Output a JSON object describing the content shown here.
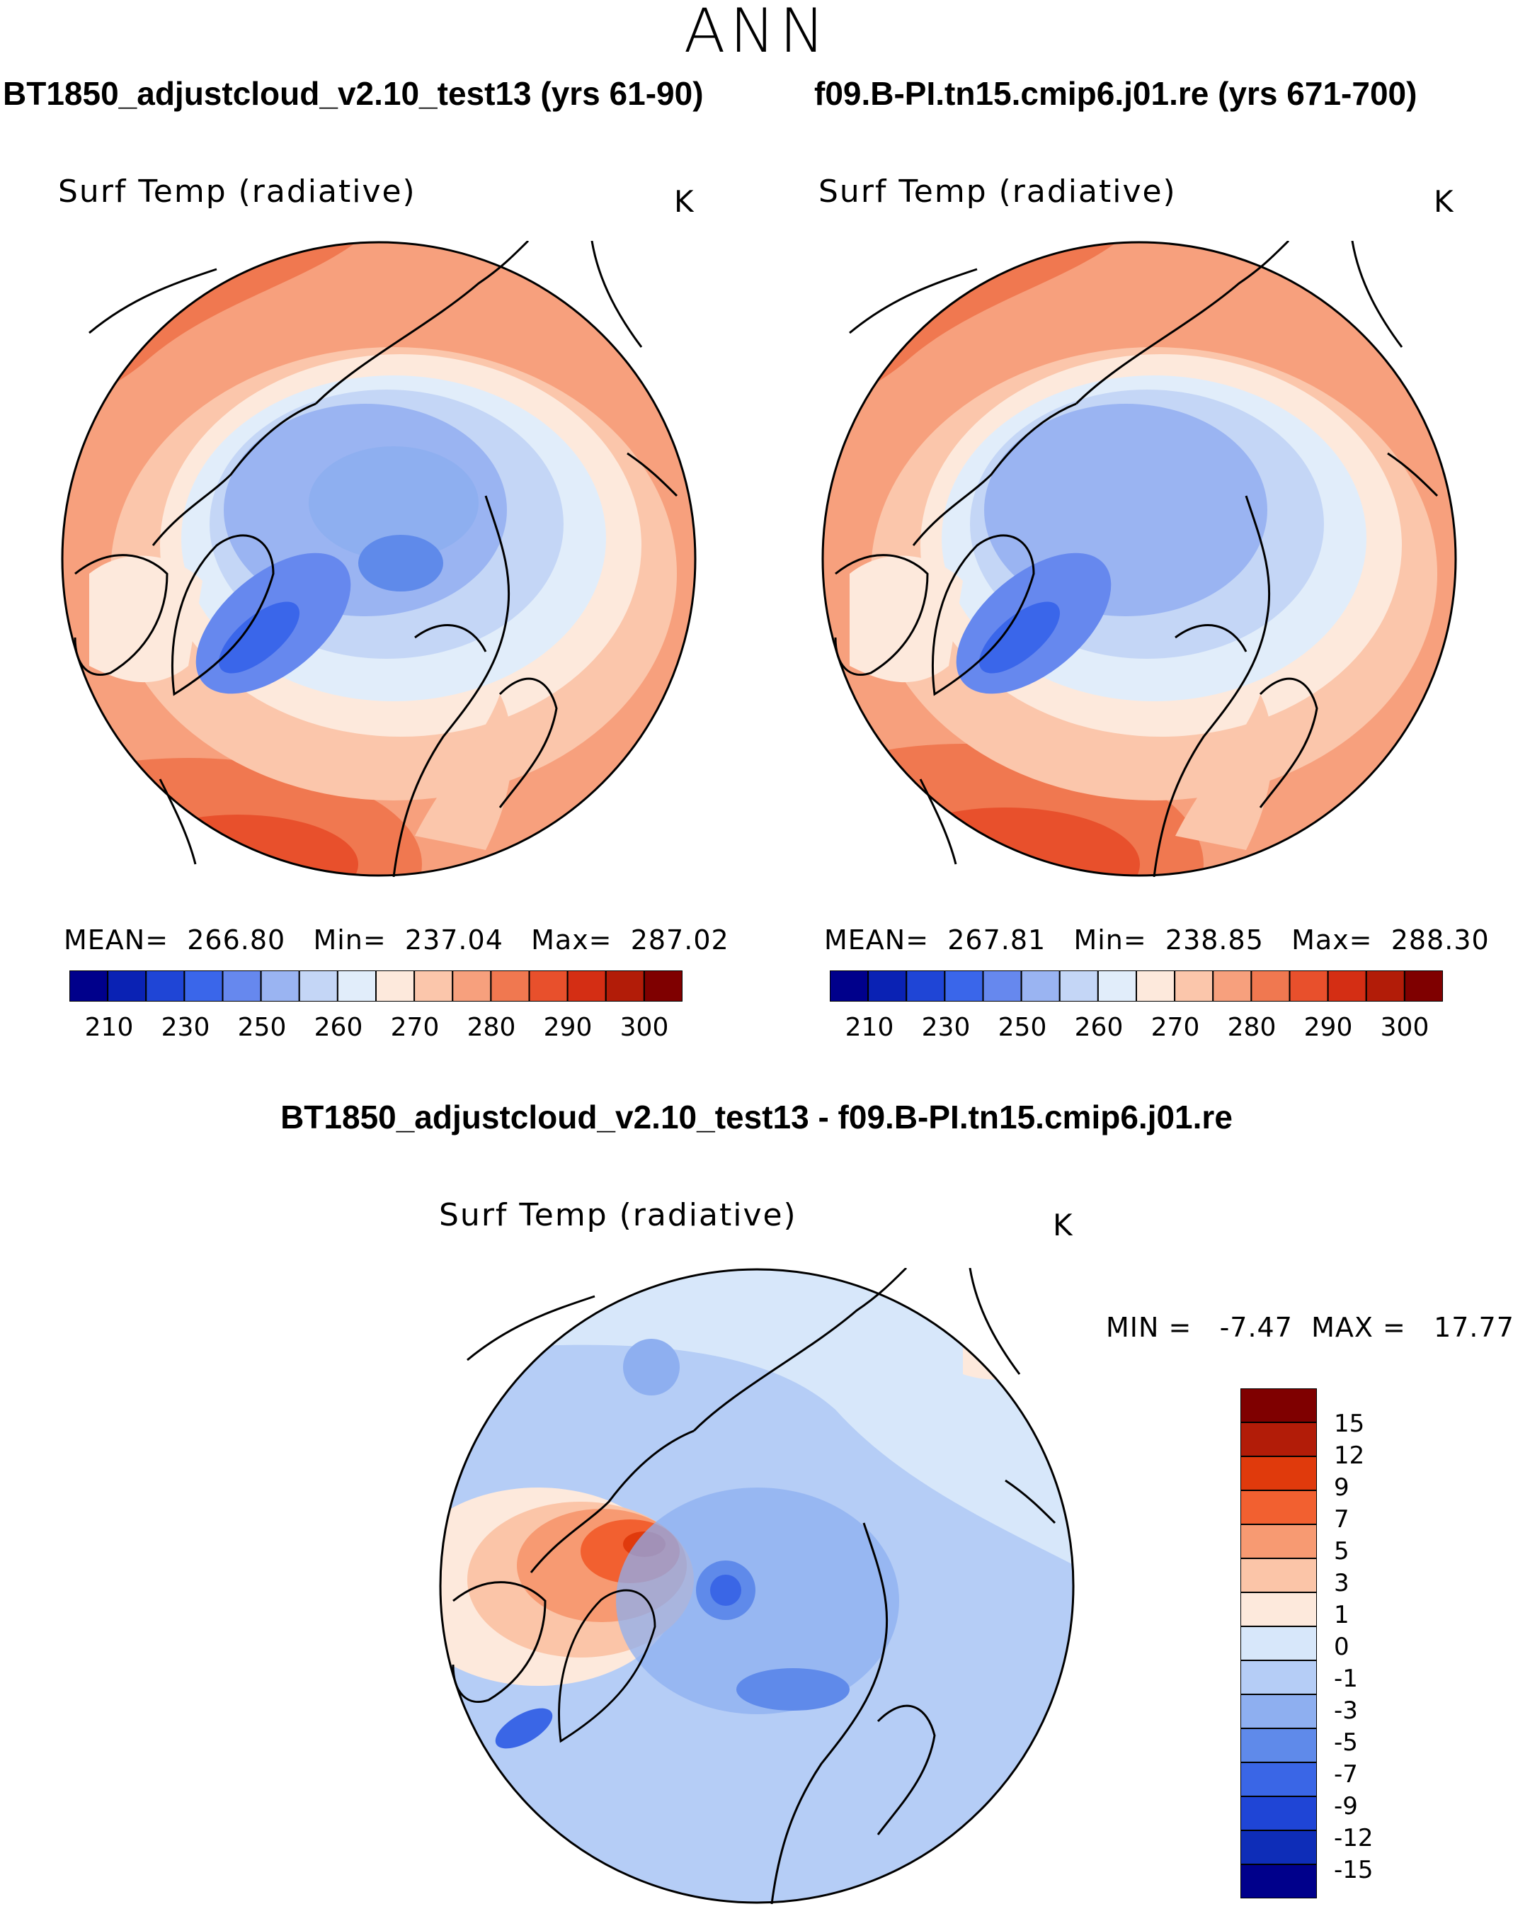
{
  "header": {
    "season": "ANN"
  },
  "panels": [
    {
      "case_title": "BT1850_adjustcloud_v2.10_test13 (yrs 61-90)",
      "variable": "Surf Temp (radiative)",
      "units": "K",
      "stats": {
        "mean_label": "MEAN=",
        "mean": "266.80",
        "min_label": "Min=",
        "min": "237.04",
        "max_label": "Max=",
        "max": "287.02"
      }
    },
    {
      "case_title": "f09.B-PI.tn15.cmip6.j01.re (yrs 671-700)",
      "variable": "Surf Temp (radiative)",
      "units": "K",
      "stats": {
        "mean_label": "MEAN=",
        "mean": "267.81",
        "min_label": "Min=",
        "min": "238.85",
        "max_label": "Max=",
        "max": "288.30"
      }
    }
  ],
  "diff_panel": {
    "title": "BT1850_adjustcloud_v2.10_test13 - f09.B-PI.tn15.cmip6.j01.re",
    "variable": "Surf Temp (radiative)",
    "units": "K",
    "minmax": {
      "min_label": "MIN =",
      "min": "-7.47",
      "max_label": "MAX =",
      "max": "17.77"
    }
  },
  "colorbar_abs": {
    "colors": [
      "#00008b",
      "#0a22b4",
      "#1f45d6",
      "#3a66ea",
      "#6688ee",
      "#9ab4f2",
      "#c4d6f6",
      "#e1edfa",
      "#fde9dc",
      "#fbc6ab",
      "#f7a07d",
      "#f07850",
      "#e8502c",
      "#d42e14",
      "#b21c08",
      "#7f0000"
    ],
    "ticks": [
      "210",
      "230",
      "250",
      "260",
      "270",
      "280",
      "290",
      "300"
    ]
  },
  "colorbar_diff": {
    "colors": [
      "#7f0000",
      "#b21c08",
      "#e03a0c",
      "#f26030",
      "#f79a72",
      "#fbc5a8",
      "#fde9dc",
      "#d7e7fa",
      "#b5cdf6",
      "#8eaff0",
      "#5f8aea",
      "#3a66e6",
      "#1f45d6",
      "#0e2db8",
      "#00008b"
    ],
    "ticks": [
      "15",
      "12",
      "9",
      "7",
      "5",
      "3",
      "1",
      "0",
      "-1",
      "-3",
      "-5",
      "-7",
      "-9",
      "-12",
      "-15"
    ]
  }
}
